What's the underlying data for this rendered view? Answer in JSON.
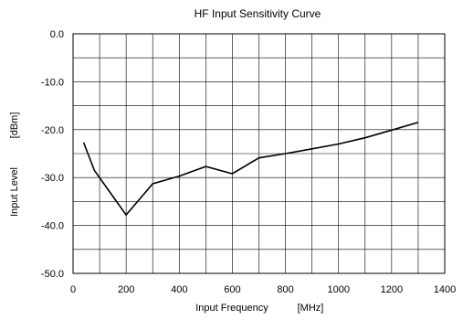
{
  "chart_data": {
    "type": "line",
    "title": "HF Input Sensitivity Curve",
    "xlabel": "Input Frequency",
    "xunit": "[MHz]",
    "ylabel": "Input Level",
    "yunit": "[dBm]",
    "xlim": [
      0,
      1400
    ],
    "ylim": [
      -50,
      0
    ],
    "x_ticks": [
      0,
      200,
      400,
      600,
      800,
      1000,
      1200,
      1400
    ],
    "x_tick_labels": [
      "0",
      "200",
      "400",
      "600",
      "800",
      "1000",
      "1200",
      "1400"
    ],
    "y_ticks": [
      0,
      -10,
      -20,
      -30,
      -40,
      -50
    ],
    "y_tick_labels": [
      "0.0",
      "-10.0",
      "-20.0",
      "-30.0",
      "-40.0",
      "-50.0"
    ],
    "x_grid_step": 100,
    "y_grid_step": 5,
    "grid": true,
    "series": [
      {
        "color": "#000000",
        "points": [
          [
            40,
            -22.7
          ],
          [
            80,
            -28.5
          ],
          [
            200,
            -37.8
          ],
          [
            300,
            -31.3
          ],
          [
            400,
            -29.7
          ],
          [
            500,
            -27.7
          ],
          [
            600,
            -29.2
          ],
          [
            700,
            -25.9
          ],
          [
            800,
            -25.0
          ],
          [
            900,
            -24.0
          ],
          [
            1000,
            -23.0
          ],
          [
            1100,
            -21.7
          ],
          [
            1200,
            -20.1
          ],
          [
            1300,
            -18.5
          ]
        ]
      }
    ]
  }
}
